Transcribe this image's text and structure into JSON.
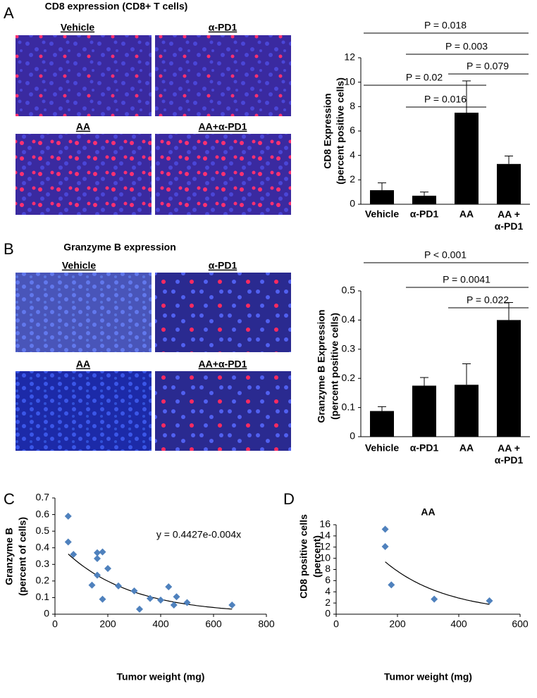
{
  "panels": [
    {
      "letter": "A",
      "title": "CD8 expression (CD8+ T cells)",
      "images": [
        "Vehicle",
        "α-PD1",
        "AA",
        "AA+α-PD1"
      ]
    },
    {
      "letter": "B",
      "title": "Granzyme B expression",
      "images": [
        "Vehicle",
        "α-PD1",
        "AA",
        "AA+α-PD1"
      ]
    },
    {
      "letter": "C"
    },
    {
      "letter": "D"
    }
  ],
  "chart_data": [
    {
      "type": "bar",
      "categories": [
        "Vehicle",
        "α-PD1",
        "AA",
        "AA + α-PD1"
      ],
      "values": [
        1.15,
        0.7,
        7.5,
        3.3
      ],
      "errors": [
        0.6,
        0.3,
        2.6,
        0.65
      ],
      "color": "#000000",
      "y_label": [
        "CD8 Expression",
        "(percent positive cells)"
      ],
      "ylim": [
        0,
        12
      ],
      "yticks": [
        0,
        2,
        4,
        6,
        8,
        10,
        12
      ],
      "annotations": [
        "P = 0.018",
        "P = 0.003",
        "P = 0.079",
        "P = 0.02",
        "P = 0.016"
      ]
    },
    {
      "type": "bar",
      "categories": [
        "Vehicle",
        "α-PD1",
        "AA",
        "AA + α-PD1"
      ],
      "values": [
        0.088,
        0.175,
        0.178,
        0.4
      ],
      "errors": [
        0.015,
        0.028,
        0.072,
        0.06
      ],
      "color": "#000000",
      "y_label": [
        "Granzyme B Expression",
        "(percent positive cells)"
      ],
      "ylim": [
        0,
        0.5
      ],
      "yticks": [
        0,
        0.1,
        0.2,
        0.3,
        0.4,
        0.5
      ],
      "annotations": [
        "P < 0.001",
        "P = 0.0041",
        "P = 0.022"
      ]
    },
    {
      "type": "scatter",
      "x": [
        50,
        50,
        70,
        140,
        160,
        160,
        160,
        180,
        180,
        200,
        240,
        300,
        320,
        360,
        400,
        430,
        450,
        460,
        500,
        670
      ],
      "values": [
        0.59,
        0.435,
        0.36,
        0.175,
        0.37,
        0.335,
        0.235,
        0.375,
        0.09,
        0.275,
        0.17,
        0.14,
        0.03,
        0.095,
        0.085,
        0.165,
        0.055,
        0.105,
        0.07,
        0.055
      ],
      "color": "#4f81bd",
      "x_label": "Tumor weight (mg)",
      "y_label": [
        "Granzyme B",
        "(percent of cells)"
      ],
      "xlim": [
        0,
        800
      ],
      "xticks": [
        0,
        200,
        400,
        600,
        800
      ],
      "ylim": [
        0,
        0.7
      ],
      "yticks": [
        0,
        0.1,
        0.2,
        0.3,
        0.4,
        0.5,
        0.6,
        0.7
      ],
      "trendline": {
        "a": 0.4427,
        "b": -0.004
      },
      "annotations": [
        "y = 0.4427e-0.004x"
      ]
    },
    {
      "type": "scatter",
      "title": "AA",
      "x": [
        160,
        160,
        180,
        320,
        500
      ],
      "values": [
        15.2,
        12.1,
        5.25,
        2.7,
        2.4
      ],
      "color": "#4f81bd",
      "x_label": "Tumor weight (mg)",
      "y_label": [
        "CD8 positive cells",
        "(percent)"
      ],
      "xlim": [
        0,
        600
      ],
      "xticks": [
        0,
        200,
        400,
        600
      ],
      "ylim": [
        0,
        16
      ],
      "yticks": [
        0,
        2,
        4,
        6,
        8,
        10,
        12,
        14,
        16
      ],
      "trendline": {
        "a": 20.5,
        "b": -0.0049
      }
    }
  ]
}
